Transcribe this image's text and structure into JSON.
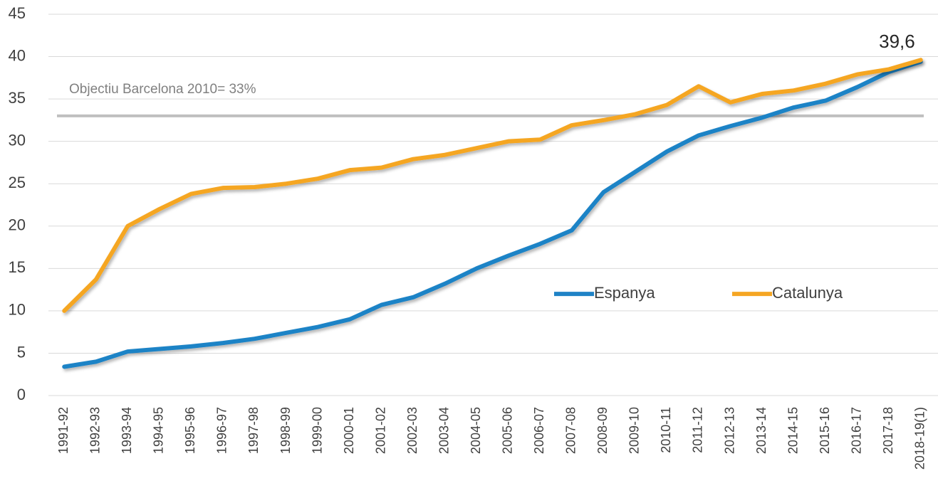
{
  "chart_data": {
    "type": "line",
    "categories": [
      "1991-92",
      "1992-93",
      "1993-94",
      "1994-95",
      "1995-96",
      "1996-97",
      "1997-98",
      "1998-99",
      "1999-00",
      "2000-01",
      "2001-02",
      "2002-03",
      "2003-04",
      "2004-05",
      "2005-06",
      "2006-07",
      "2007-08",
      "2008-09",
      "2009-10",
      "2010-11",
      "2011-12",
      "2012-13",
      "2013-14",
      "2014-15",
      "2015-16",
      "2016-17",
      "2017-18",
      "2018-19(1)"
    ],
    "series": [
      {
        "name": "Espanya",
        "color": "#1f83c6",
        "values": [
          3.4,
          4.0,
          5.2,
          5.5,
          5.8,
          6.2,
          6.7,
          7.4,
          8.1,
          9.0,
          10.7,
          11.6,
          13.2,
          15.0,
          16.5,
          17.9,
          19.5,
          24.0,
          26.4,
          28.8,
          30.7,
          31.8,
          32.8,
          34.0,
          34.8,
          36.4,
          38.2,
          39.4
        ]
      },
      {
        "name": "Catalunya",
        "color": "#f5a623",
        "values": [
          10.0,
          13.7,
          20.0,
          22.0,
          23.8,
          24.5,
          24.6,
          25.0,
          25.6,
          26.6,
          26.9,
          27.9,
          28.4,
          29.2,
          30.0,
          30.2,
          31.9,
          32.5,
          33.2,
          34.3,
          36.5,
          34.6,
          35.6,
          36.0,
          36.8,
          37.9,
          38.5,
          39.6
        ],
        "value_labels": [
          null,
          null,
          null,
          null,
          null,
          null,
          null,
          null,
          null,
          null,
          null,
          null,
          null,
          null,
          null,
          null,
          null,
          null,
          null,
          null,
          null,
          null,
          null,
          null,
          null,
          null,
          null,
          "39,6"
        ]
      }
    ],
    "reference_lines": [
      {
        "value": 33,
        "label": "Objectiu Barcelona 2010= 33%",
        "color": "#bfbfbf"
      }
    ],
    "ylim": [
      0,
      45
    ],
    "yticks": [
      0,
      5,
      10,
      15,
      20,
      25,
      30,
      35,
      40,
      45
    ],
    "grid": true,
    "legend": "right"
  }
}
